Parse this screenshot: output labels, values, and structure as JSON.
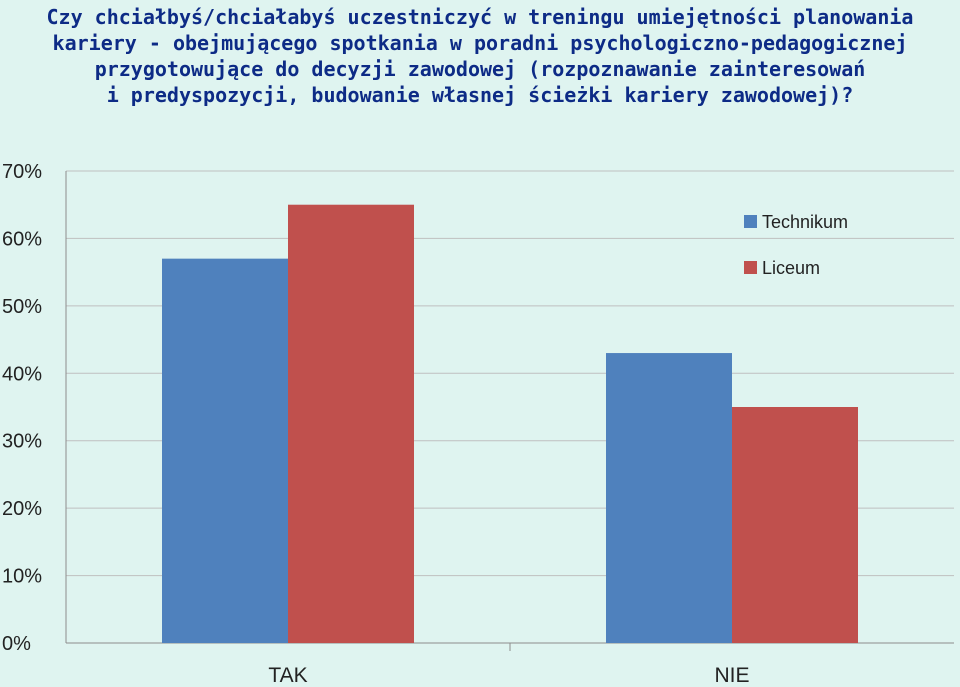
{
  "chart_data": {
    "type": "bar",
    "title_lines": [
      "Czy chciałbyś/chciałabyś uczestniczyć w treningu umiejętności planowania",
      "kariery - obejmującego spotkania w poradni psychologiczno-pedagogicznej",
      "przygotowujące do decyzji zawodowej (rozpoznawanie zainteresowań",
      "i predyspozycji, budowanie własnej ścieżki kariery zawodowej)?"
    ],
    "categories": [
      "TAK",
      "NIE"
    ],
    "series": [
      {
        "name": "Technikum",
        "values": [
          57,
          43
        ],
        "color": "#4f81bd"
      },
      {
        "name": "Liceum",
        "values": [
          65,
          35
        ],
        "color": "#c0504d"
      }
    ],
    "ylim": [
      0,
      70
    ],
    "yticks": [
      0,
      10,
      20,
      30,
      40,
      50,
      60,
      70
    ],
    "ytick_labels": [
      "0%",
      "10%",
      "20%",
      "30%",
      "40%",
      "50%",
      "60%",
      "70%"
    ],
    "grid": true,
    "legend_position": "right",
    "background_color": "#dff4f0",
    "title_color": "#0d2b86"
  }
}
